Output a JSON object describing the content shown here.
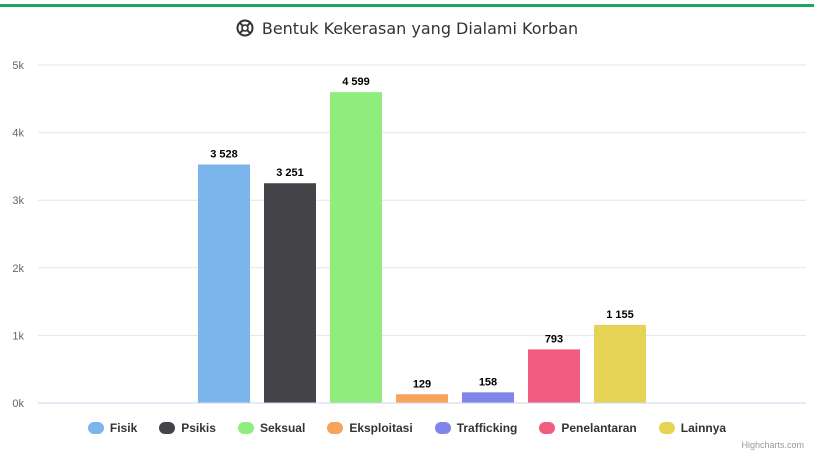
{
  "chart_data": {
    "type": "bar",
    "title": "Bentuk Kekerasan yang Dialami Korban",
    "title_icon": "lifebuoy-icon",
    "categories": [
      "Fisik",
      "Psikis",
      "Seksual",
      "Eksploitasi",
      "Trafficking",
      "Penelantaran",
      "Lainnya"
    ],
    "values": [
      3528,
      3251,
      4599,
      129,
      158,
      793,
      1155
    ],
    "data_labels": [
      "3 528",
      "3 251",
      "4 599",
      "129",
      "158",
      "793",
      "1 155"
    ],
    "colors": [
      "#7cb5ec",
      "#434348",
      "#90ed7d",
      "#f7a35c",
      "#8085e9",
      "#f15c80",
      "#e4d354"
    ],
    "ylim": [
      0,
      5000
    ],
    "yticks": [
      0,
      1000,
      2000,
      3000,
      4000,
      5000
    ],
    "ytick_labels": [
      "0k",
      "1k",
      "2k",
      "3k",
      "4k",
      "5k"
    ],
    "xlabel": "",
    "ylabel": "",
    "grid": true,
    "legend_position": "bottom"
  },
  "credits": "Highcharts.com",
  "accent_color": "#1fa463"
}
